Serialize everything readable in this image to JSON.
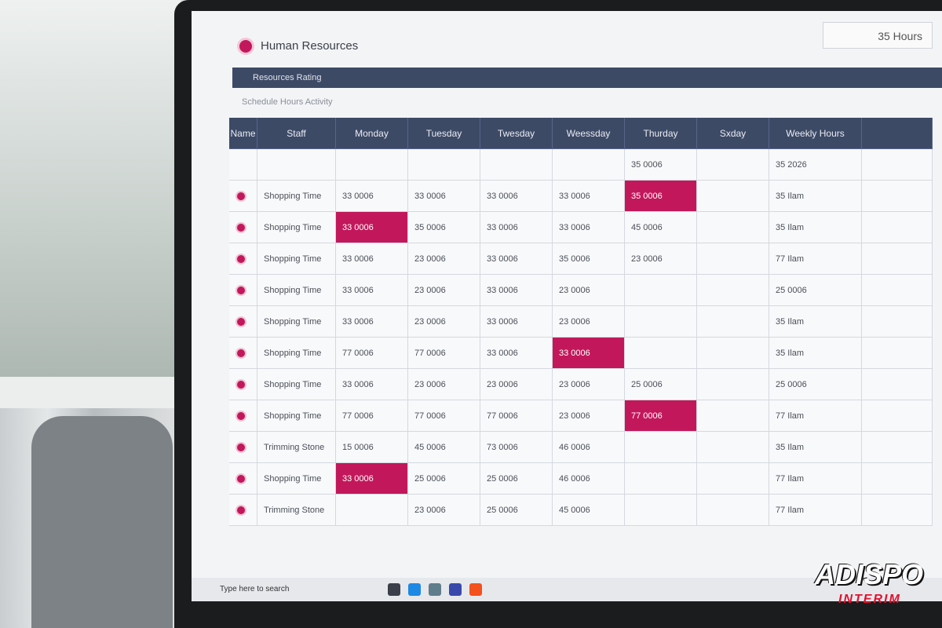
{
  "header": {
    "title": "Human Resources",
    "badge": "35 Hours"
  },
  "toolbar": {
    "label": "Resources Rating",
    "subtitle": "Schedule Hours Activity"
  },
  "table": {
    "columns": [
      "Name",
      "Staff",
      "Monday",
      "Tuesday",
      "Twesday",
      "Weessday",
      "Thurday",
      "Sxday",
      "Weekly Hours"
    ],
    "rows": [
      {
        "name": null,
        "cells": [
          null,
          null,
          null,
          null,
          "35 0006",
          null
        ],
        "weekly": "35 2026"
      },
      {
        "name": "Shopping Time",
        "cells": [
          "33 0006",
          "33 0006",
          "33 0006",
          "33 0006",
          "35 0006",
          null
        ],
        "weekly": "35 Ilam",
        "highlight": 4
      },
      {
        "name": "Shopping Time",
        "cells": [
          "33 0006",
          "35 0006",
          "33 0006",
          "33 0006",
          "45 0006",
          null
        ],
        "weekly": "35 Ilam",
        "highlight": 0
      },
      {
        "name": "Shopping Time",
        "cells": [
          "33 0006",
          "23 0006",
          "33 0006",
          "35 0006",
          "23 0006",
          null
        ],
        "weekly": "77 Ilam"
      },
      {
        "name": "Shopping Time",
        "cells": [
          "33 0006",
          "23 0006",
          "33 0006",
          "23 0006",
          null,
          null
        ],
        "weekly": "25 0006"
      },
      {
        "name": "Shopping Time",
        "cells": [
          "33 0006",
          "23 0006",
          "33 0006",
          "23 0006",
          null,
          null
        ],
        "weekly": "35 Ilam"
      },
      {
        "name": "Shopping Time",
        "cells": [
          "77 0006",
          "77 0006",
          "33 0006",
          "33 0006",
          null,
          null
        ],
        "weekly": "35 Ilam",
        "highlight": 3
      },
      {
        "name": "Shopping Time",
        "cells": [
          "33 0006",
          "23 0006",
          "23 0006",
          "23 0006",
          "25 0006",
          null
        ],
        "weekly": "25 0006"
      },
      {
        "name": "Shopping Time",
        "cells": [
          "77 0006",
          "77 0006",
          "77 0006",
          "23 0006",
          "77 0006",
          null
        ],
        "weekly": "77 Ilam",
        "highlight": 4
      },
      {
        "name": "Trimming Stone",
        "cells": [
          "15 0006",
          "45 0006",
          "73 0006",
          "46 0006",
          null,
          null
        ],
        "weekly": "35 Ilam"
      },
      {
        "name": "Shopping Time",
        "cells": [
          "33 0006",
          "25 0006",
          "25 0006",
          "46 0006",
          null,
          null
        ],
        "weekly": "77 Ilam",
        "highlight": 0
      },
      {
        "name": "Trimming Stone",
        "cells": [
          null,
          "23 0006",
          "25 0006",
          "45 0006",
          null,
          null
        ],
        "weekly": "77 Ilam"
      }
    ]
  },
  "taskbar": {
    "search": "Type here to search"
  },
  "watermark": {
    "brand": "ADISPO",
    "tagline": "INTERIM"
  }
}
